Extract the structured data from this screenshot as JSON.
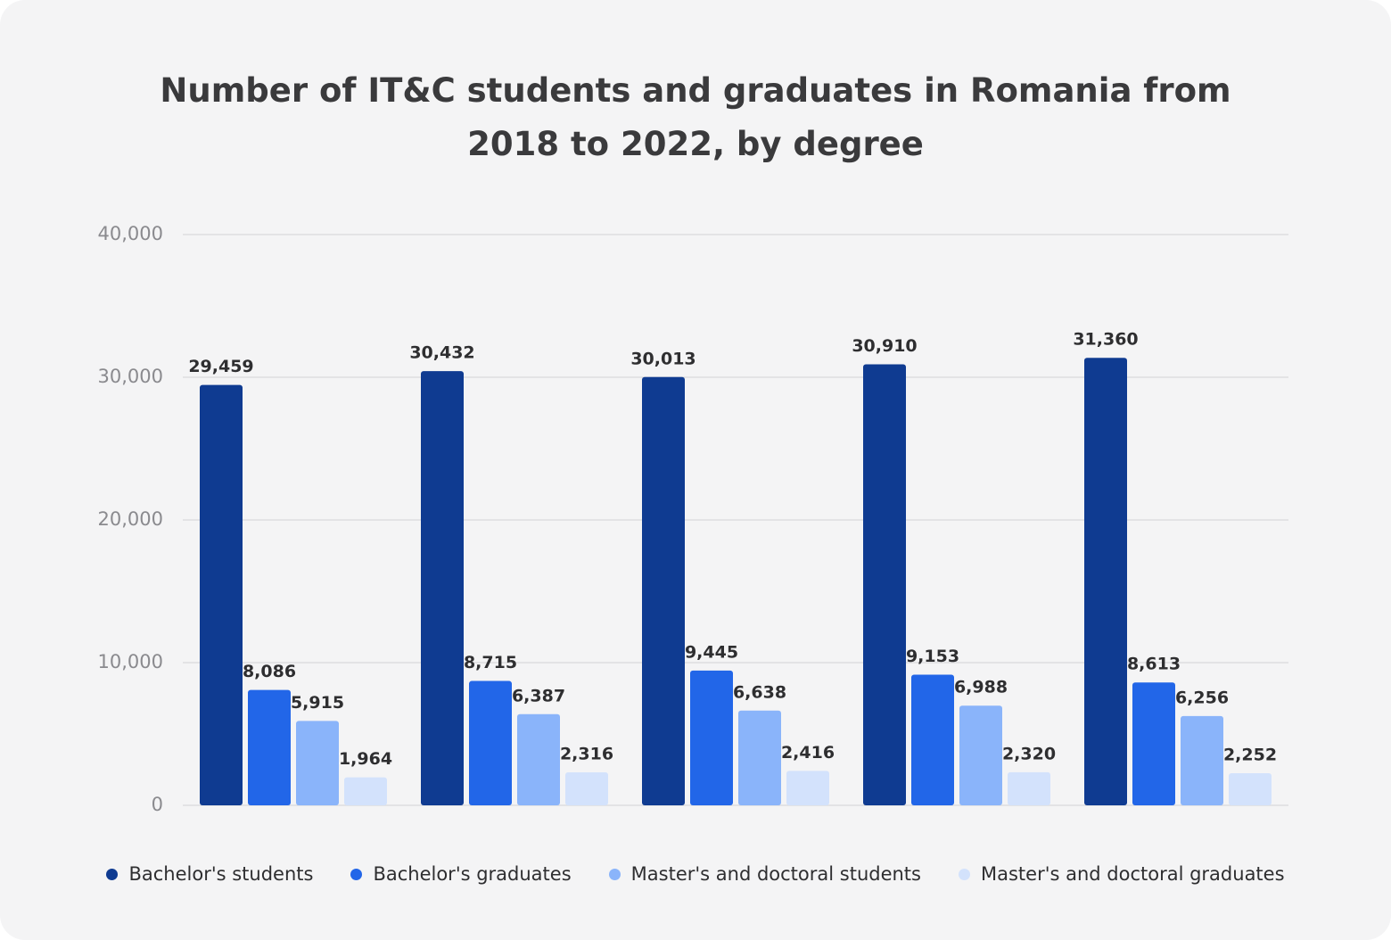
{
  "chart_data": {
    "type": "bar",
    "title": "Number of IT&C students and graduates in Romania from 2018 to 2022, by degree",
    "categories": [
      null,
      null,
      null,
      null,
      null
    ],
    "series": [
      {
        "name": "Bachelor's students",
        "color": "#0f3b91",
        "values": [
          29459,
          30432,
          30013,
          30910,
          31360
        ],
        "value_labels": [
          "29,459",
          "30,432",
          "30,013",
          "30,910",
          "31,360"
        ]
      },
      {
        "name": "Bachelor's graduates",
        "color": "#2266e8",
        "values": [
          8086,
          8715,
          9445,
          9153,
          8613
        ],
        "value_labels": [
          "8,086",
          "8,715",
          "9,445",
          "9,153",
          "8,613"
        ]
      },
      {
        "name": "Master's and doctoral students",
        "color": "#8ab4fa",
        "values": [
          5915,
          6387,
          6638,
          6988,
          6256
        ],
        "value_labels": [
          "5,915",
          "6,387",
          "6,638",
          "6,988",
          "6,256"
        ]
      },
      {
        "name": "Master's and doctoral graduates",
        "color": "#d3e2fc",
        "values": [
          1964,
          2316,
          2416,
          2320,
          2252
        ],
        "value_labels": [
          "1,964",
          "2,316",
          "2,416",
          "2,320",
          "2,252"
        ]
      }
    ],
    "ylim": [
      0,
      40000
    ],
    "yticks": [
      0,
      {
        "value": 10000,
        "label": "10,000"
      },
      {
        "value": 20000,
        "label": "20,000"
      },
      {
        "value": 30000,
        "label": "30,000"
      },
      {
        "value": 40000,
        "label": "40,000"
      }
    ],
    "grid": true,
    "legend": "bottom"
  }
}
